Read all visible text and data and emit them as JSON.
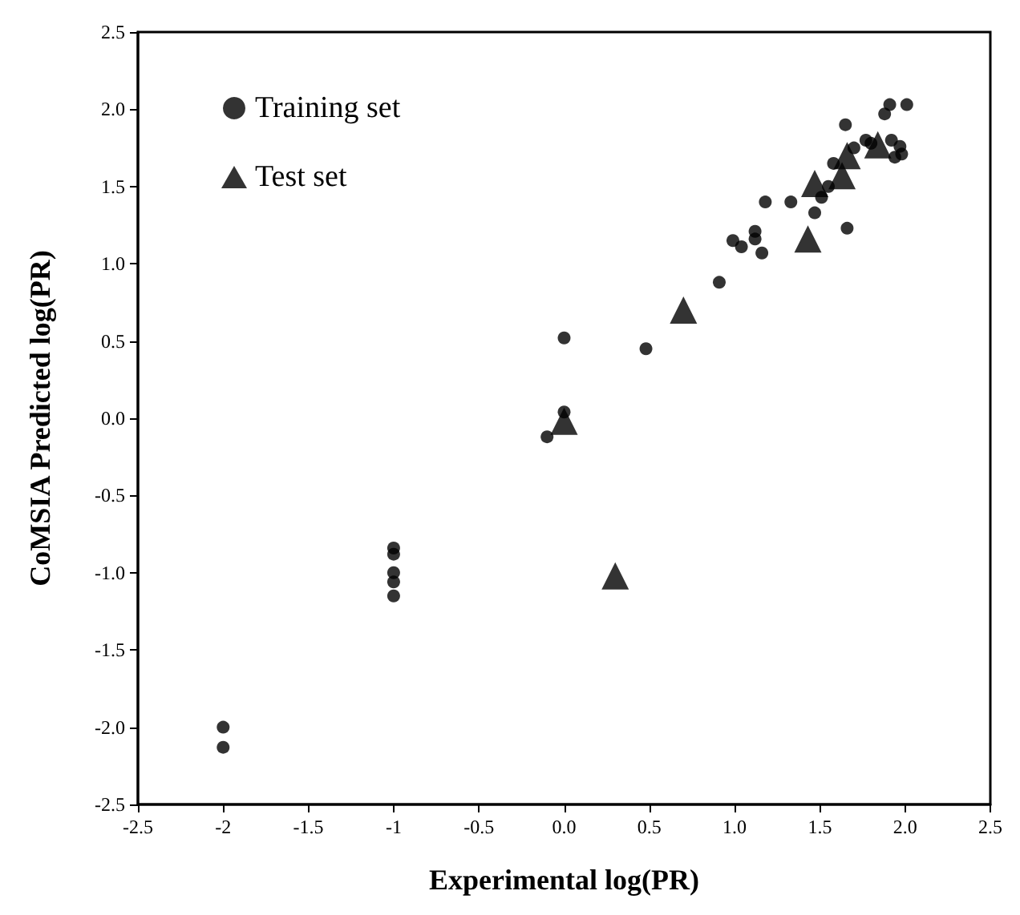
{
  "chart_data": {
    "type": "scatter",
    "xlabel": "Experimental log(PR)",
    "ylabel": "CoMSIA Predicted log(PR)",
    "xlim": [
      -2.5,
      2.5
    ],
    "ylim": [
      -2.5,
      2.5
    ],
    "xticks": [
      -2.5,
      -2,
      -1.5,
      -1,
      -0.5,
      {
        "value": 0,
        "label": "0.0"
      },
      0.5,
      {
        "value": 1,
        "label": "1.0"
      },
      1.5,
      {
        "value": 2,
        "label": "2.0"
      },
      2.5
    ],
    "yticks": [
      -2.5,
      {
        "value": -2,
        "label": "-2.0"
      },
      -1.5,
      {
        "value": -1,
        "label": "-1.0"
      },
      -0.5,
      {
        "value": 0,
        "label": "0.0"
      },
      0.5,
      {
        "value": 1,
        "label": "1.0"
      },
      1.5,
      {
        "value": 2,
        "label": "2.0"
      },
      2.5
    ],
    "grid": false,
    "legend": "top left",
    "series": [
      {
        "name": "Training set",
        "color": "#000000",
        "marker": "circle",
        "x": [
          -2,
          -2,
          -1,
          -1,
          -1,
          -1,
          -1,
          -0.1,
          0,
          0,
          0.48,
          0.91,
          0.99,
          1.04,
          1.12,
          1.12,
          1.16,
          1.18,
          1.33,
          1.66,
          1.47,
          1.51,
          1.65,
          1.88,
          1.91,
          2.01,
          1.77,
          1.8,
          1.92,
          1.97,
          1.94,
          1.98,
          1.55,
          1.7,
          1.58
        ],
        "values": [
          -2.0,
          -2.13,
          -0.84,
          -0.88,
          -1.0,
          -1.06,
          -1.15,
          -0.12,
          0.04,
          0.52,
          0.45,
          0.88,
          1.15,
          1.11,
          1.21,
          1.16,
          1.07,
          1.4,
          1.4,
          1.23,
          1.33,
          1.43,
          1.9,
          1.97,
          2.03,
          2.03,
          1.8,
          1.78,
          1.8,
          1.76,
          1.69,
          1.71,
          1.5,
          1.75,
          1.65
        ]
      },
      {
        "name": "Test set",
        "color": "#000000",
        "marker": "triangle",
        "x": [
          0,
          0.3,
          0.7,
          1.43,
          1.47,
          1.63,
          1.66,
          1.84
        ],
        "values": [
          -0.02,
          -1.02,
          0.7,
          1.16,
          1.52,
          1.57,
          1.7,
          1.77
        ]
      }
    ]
  }
}
